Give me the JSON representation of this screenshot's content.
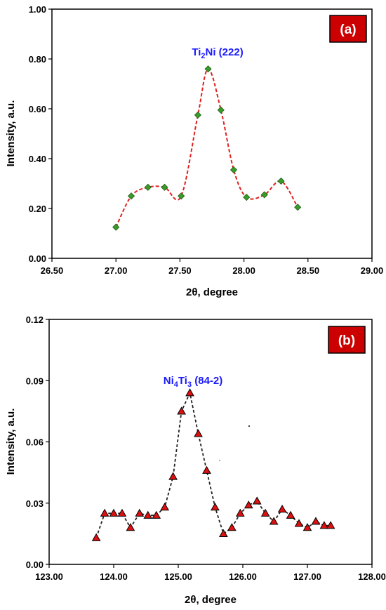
{
  "chart_data": [
    {
      "type": "line",
      "panel_label": "(a)",
      "annotation": {
        "main": "Ti",
        "sub": "2",
        "rest": "Ni (222)",
        "x": 27.72,
        "y": 0.8
      },
      "xlabel": "2θ, degree",
      "ylabel": "Intensity, a.u.",
      "xlim": [
        26.5,
        29.0
      ],
      "ylim": [
        0.0,
        1.0
      ],
      "xticks": [
        "26.50",
        "27.00",
        "27.50",
        "28.00",
        "28.50",
        "29.00"
      ],
      "yticks": [
        "0.00",
        "0.20",
        "0.40",
        "0.60",
        "0.80",
        "1.00"
      ],
      "marker": "diamond",
      "marker_color": "#3a9a2a",
      "line_color": "#e02020",
      "line_style": "dashed-smooth",
      "series": [
        {
          "x": [
            27.0,
            27.12,
            27.25,
            27.38,
            27.51,
            27.64,
            27.72,
            27.82,
            27.92,
            28.02,
            28.16,
            28.29,
            28.42
          ],
          "y": [
            0.125,
            0.25,
            0.285,
            0.285,
            0.25,
            0.575,
            0.76,
            0.595,
            0.355,
            0.245,
            0.255,
            0.31,
            0.205
          ]
        }
      ],
      "grid": false,
      "legend": "none"
    },
    {
      "type": "line",
      "panel_label": "(b)",
      "annotation": {
        "main": "Ni",
        "sub": "4",
        "rest": "Ti",
        "sub2": "3",
        "rest2": " (84-2)",
        "x": 125.15,
        "y": 0.088
      },
      "xlabel": "2θ, degree",
      "ylabel": "Intensity, a.u.",
      "xlim": [
        123.0,
        128.0
      ],
      "ylim": [
        0.0,
        0.12
      ],
      "xticks": [
        "123.00",
        "124.00",
        "125.00",
        "126.00",
        "127.00",
        "128.00"
      ],
      "yticks": [
        "0.00",
        "0.03",
        "0.06",
        "0.09",
        "0.12"
      ],
      "marker": "triangle",
      "marker_color": "#dd1111",
      "line_color": "#222222",
      "line_style": "dashed",
      "series": [
        {
          "x": [
            123.73,
            123.86,
            124.0,
            124.13,
            124.26,
            124.4,
            124.53,
            124.66,
            124.79,
            124.92,
            125.05,
            125.18,
            125.31,
            125.44,
            125.57,
            125.7,
            125.83,
            125.96,
            126.09,
            126.22,
            126.35,
            126.48,
            126.61,
            126.74,
            126.87,
            127.0,
            127.13,
            127.26,
            127.36
          ],
          "y": [
            0.013,
            0.025,
            0.025,
            0.025,
            0.018,
            0.025,
            0.024,
            0.024,
            0.028,
            0.043,
            0.075,
            0.084,
            0.064,
            0.046,
            0.028,
            0.015,
            0.018,
            0.025,
            0.029,
            0.031,
            0.025,
            0.021,
            0.027,
            0.024,
            0.02,
            0.018,
            0.021,
            0.019,
            0.019
          ]
        }
      ],
      "grid": false,
      "legend": "none"
    }
  ]
}
